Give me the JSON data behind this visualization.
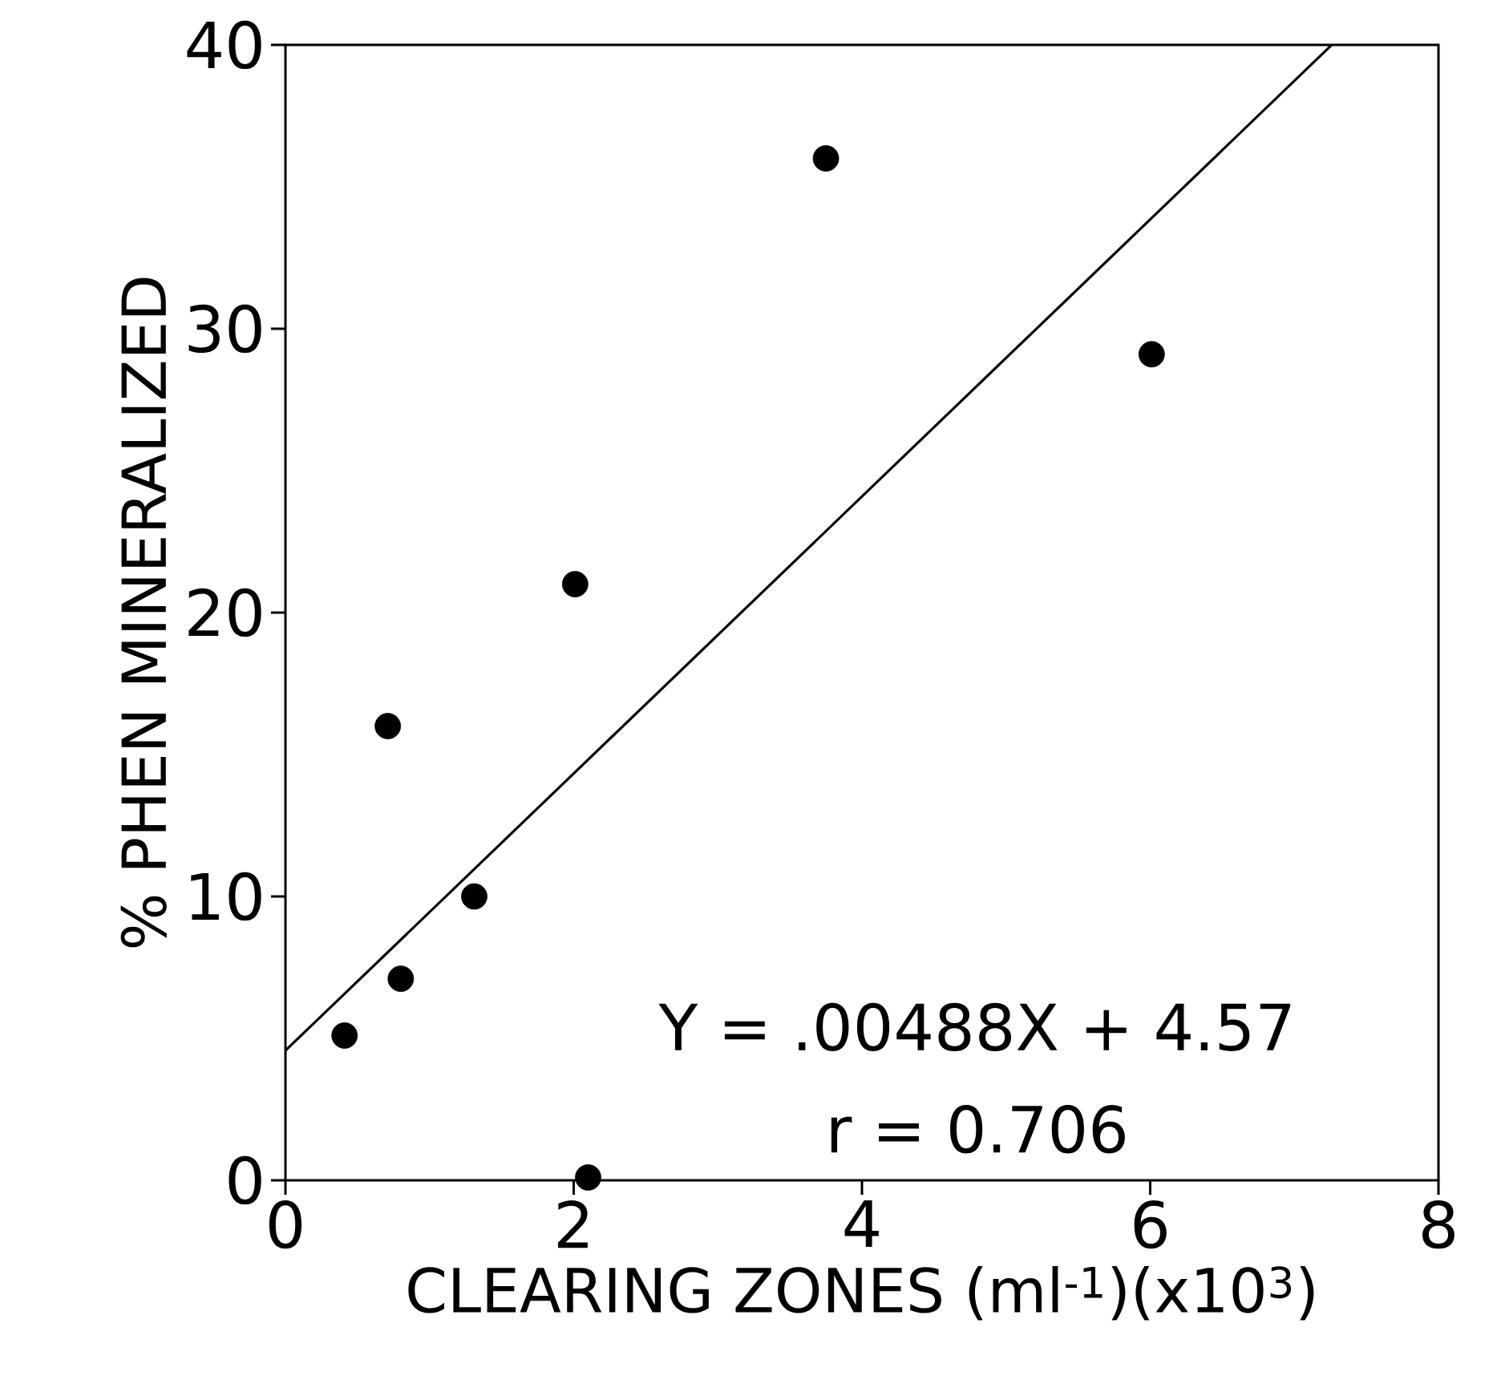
{
  "chart_data": {
    "type": "scatter",
    "xlabel": "CLEARING ZONES (ml$^{-1}$)(x10$^{3}$)",
    "ylabel": "% PHEN MINERALIZED",
    "xlim": [
      0,
      8
    ],
    "ylim": [
      0,
      40
    ],
    "xticks": [
      0,
      2,
      4,
      6,
      8
    ],
    "yticks": [
      0,
      10,
      20,
      30,
      40
    ],
    "marker": "circle",
    "annotations": [
      "Y = .00488X + 4.57",
      "r = 0.706"
    ],
    "series": [
      {
        "color": "#000000",
        "x": [
          0.41,
          0.71,
          0.8,
          1.31,
          2.01,
          2.1,
          3.75,
          6.01
        ],
        "values": [
          5.1,
          16.0,
          7.1,
          10.0,
          21.0,
          0.1,
          36.0,
          29.1
        ]
      },
      {
        "type": "line",
        "marker": "none",
        "color": "#000000",
        "x": [
          0,
          7.26
        ],
        "values": [
          4.57,
          40
        ]
      }
    ]
  }
}
